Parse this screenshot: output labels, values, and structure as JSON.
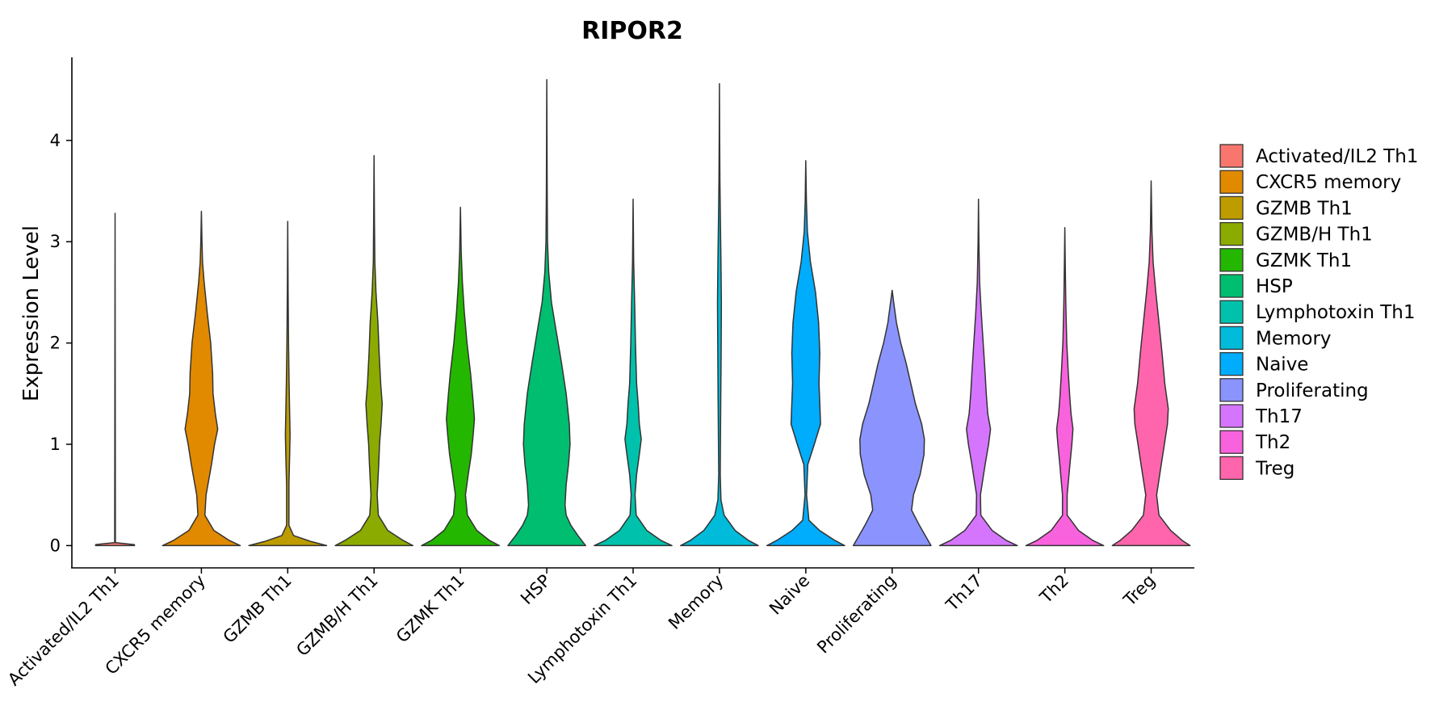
{
  "chart_data": {
    "type": "violin",
    "title": "RIPOR2",
    "xlabel": "",
    "ylabel": "Expression Level",
    "ylim": [
      -0.22,
      4.82
    ],
    "yticks": [
      0,
      1,
      2,
      3,
      4
    ],
    "grid": false,
    "legend_position": "right",
    "categories": [
      "Activated/IL2 Th1",
      "CXCR5 memory",
      "GZMB Th1",
      "GZMB/H Th1",
      "GZMK Th1",
      "HSP",
      "Lymphotoxin Th1",
      "Memory",
      "Naive",
      "Proliferating",
      "Th17",
      "Th2",
      "Treg"
    ],
    "series": [
      {
        "name": "Activated/IL2 Th1",
        "color": "#F8766D",
        "max": 3.28,
        "profile": [
          [
            0,
            0.5
          ],
          [
            0.01,
            0.5
          ],
          [
            0.03,
            0.01
          ],
          [
            3.28,
            0
          ]
        ]
      },
      {
        "name": "CXCR5 memory",
        "color": "#E18A00",
        "max": 3.3,
        "profile": [
          [
            0,
            1.0
          ],
          [
            0.05,
            0.72
          ],
          [
            0.15,
            0.32
          ],
          [
            0.3,
            0.09
          ],
          [
            0.5,
            0.12
          ],
          [
            0.8,
            0.26
          ],
          [
            1.0,
            0.34
          ],
          [
            1.15,
            0.42
          ],
          [
            1.3,
            0.36
          ],
          [
            1.5,
            0.3
          ],
          [
            1.7,
            0.29
          ],
          [
            2.0,
            0.24
          ],
          [
            2.3,
            0.15
          ],
          [
            2.6,
            0.07
          ],
          [
            2.8,
            0.03
          ],
          [
            3.0,
            0.015
          ],
          [
            3.3,
            0
          ]
        ]
      },
      {
        "name": "GZMB Th1",
        "color": "#BE9C00",
        "max": 3.2,
        "profile": [
          [
            0,
            1.0
          ],
          [
            0.04,
            0.6
          ],
          [
            0.1,
            0.15
          ],
          [
            0.2,
            0.03
          ],
          [
            0.6,
            0.03
          ],
          [
            0.9,
            0.05
          ],
          [
            1.1,
            0.06
          ],
          [
            1.3,
            0.05
          ],
          [
            1.6,
            0.035
          ],
          [
            2.0,
            0.02
          ],
          [
            2.5,
            0.01
          ],
          [
            3.2,
            0
          ]
        ]
      },
      {
        "name": "GZMB/H Th1",
        "color": "#8CAB00",
        "max": 3.85,
        "profile": [
          [
            0,
            1.0
          ],
          [
            0.05,
            0.75
          ],
          [
            0.15,
            0.35
          ],
          [
            0.3,
            0.11
          ],
          [
            0.5,
            0.08
          ],
          [
            0.8,
            0.12
          ],
          [
            1.0,
            0.14
          ],
          [
            1.2,
            0.18
          ],
          [
            1.4,
            0.21
          ],
          [
            1.6,
            0.17
          ],
          [
            1.9,
            0.13
          ],
          [
            2.2,
            0.1
          ],
          [
            2.5,
            0.05
          ],
          [
            2.8,
            0.02
          ],
          [
            3.2,
            0.01
          ],
          [
            3.85,
            0
          ]
        ]
      },
      {
        "name": "GZMK Th1",
        "color": "#24B700",
        "max": 3.34,
        "profile": [
          [
            0,
            1.0
          ],
          [
            0.05,
            0.75
          ],
          [
            0.15,
            0.42
          ],
          [
            0.3,
            0.18
          ],
          [
            0.5,
            0.13
          ],
          [
            0.7,
            0.2
          ],
          [
            0.9,
            0.28
          ],
          [
            1.1,
            0.33
          ],
          [
            1.25,
            0.36
          ],
          [
            1.45,
            0.32
          ],
          [
            1.7,
            0.26
          ],
          [
            2.0,
            0.17
          ],
          [
            2.3,
            0.1
          ],
          [
            2.6,
            0.05
          ],
          [
            2.9,
            0.02
          ],
          [
            3.34,
            0
          ]
        ]
      },
      {
        "name": "HSP",
        "color": "#00BE70",
        "max": 4.6,
        "profile": [
          [
            0,
            1.0
          ],
          [
            0.1,
            0.8
          ],
          [
            0.2,
            0.62
          ],
          [
            0.3,
            0.5
          ],
          [
            0.4,
            0.47
          ],
          [
            0.6,
            0.5
          ],
          [
            0.8,
            0.56
          ],
          [
            1.0,
            0.6
          ],
          [
            1.2,
            0.58
          ],
          [
            1.5,
            0.5
          ],
          [
            1.8,
            0.38
          ],
          [
            2.1,
            0.25
          ],
          [
            2.4,
            0.12
          ],
          [
            2.7,
            0.05
          ],
          [
            3.0,
            0.02
          ],
          [
            3.5,
            0.01
          ],
          [
            4.6,
            0
          ]
        ]
      },
      {
        "name": "Lymphotoxin Th1",
        "color": "#00C1AB",
        "max": 3.42,
        "profile": [
          [
            0,
            1.0
          ],
          [
            0.05,
            0.72
          ],
          [
            0.15,
            0.35
          ],
          [
            0.3,
            0.08
          ],
          [
            0.5,
            0.05
          ],
          [
            0.7,
            0.09
          ],
          [
            0.9,
            0.16
          ],
          [
            1.05,
            0.21
          ],
          [
            1.2,
            0.16
          ],
          [
            1.4,
            0.13
          ],
          [
            1.6,
            0.09
          ],
          [
            2.0,
            0.06
          ],
          [
            2.4,
            0.04
          ],
          [
            2.8,
            0.015
          ],
          [
            3.42,
            0
          ]
        ]
      },
      {
        "name": "Memory",
        "color": "#00BBDA",
        "max": 4.56,
        "profile": [
          [
            0,
            1.0
          ],
          [
            0.05,
            0.75
          ],
          [
            0.15,
            0.4
          ],
          [
            0.3,
            0.12
          ],
          [
            0.45,
            0.04
          ],
          [
            0.7,
            0.02
          ],
          [
            1.0,
            0.025
          ],
          [
            1.5,
            0.035
          ],
          [
            2.0,
            0.045
          ],
          [
            2.4,
            0.05
          ],
          [
            2.8,
            0.04
          ],
          [
            3.2,
            0.025
          ],
          [
            3.6,
            0.012
          ],
          [
            4.0,
            0.006
          ],
          [
            4.56,
            0
          ]
        ]
      },
      {
        "name": "Naive",
        "color": "#00ACFC",
        "max": 3.8,
        "profile": [
          [
            0,
            1.0
          ],
          [
            0.05,
            0.75
          ],
          [
            0.15,
            0.35
          ],
          [
            0.25,
            0.08
          ],
          [
            0.5,
            0.02
          ],
          [
            0.8,
            0.05
          ],
          [
            1.0,
            0.22
          ],
          [
            1.2,
            0.38
          ],
          [
            1.4,
            0.36
          ],
          [
            1.6,
            0.34
          ],
          [
            1.9,
            0.36
          ],
          [
            2.2,
            0.33
          ],
          [
            2.5,
            0.25
          ],
          [
            2.8,
            0.12
          ],
          [
            3.1,
            0.04
          ],
          [
            3.4,
            0.015
          ],
          [
            3.8,
            0
          ]
        ]
      },
      {
        "name": "Proliferating",
        "color": "#8B93FF",
        "max": 2.52,
        "profile": [
          [
            0,
            1.0
          ],
          [
            0.1,
            0.85
          ],
          [
            0.2,
            0.7
          ],
          [
            0.35,
            0.5
          ],
          [
            0.5,
            0.55
          ],
          [
            0.7,
            0.72
          ],
          [
            0.9,
            0.82
          ],
          [
            1.05,
            0.83
          ],
          [
            1.2,
            0.76
          ],
          [
            1.4,
            0.6
          ],
          [
            1.6,
            0.48
          ],
          [
            1.8,
            0.36
          ],
          [
            2.0,
            0.22
          ],
          [
            2.2,
            0.11
          ],
          [
            2.4,
            0.04
          ],
          [
            2.52,
            0
          ]
        ]
      },
      {
        "name": "Th17",
        "color": "#D575FE",
        "max": 3.42,
        "profile": [
          [
            0,
            1.0
          ],
          [
            0.05,
            0.72
          ],
          [
            0.15,
            0.35
          ],
          [
            0.3,
            0.06
          ],
          [
            0.5,
            0.05
          ],
          [
            0.8,
            0.17
          ],
          [
            1.0,
            0.26
          ],
          [
            1.15,
            0.31
          ],
          [
            1.3,
            0.24
          ],
          [
            1.5,
            0.2
          ],
          [
            1.7,
            0.17
          ],
          [
            2.0,
            0.12
          ],
          [
            2.3,
            0.07
          ],
          [
            2.6,
            0.03
          ],
          [
            3.0,
            0.01
          ],
          [
            3.42,
            0
          ]
        ]
      },
      {
        "name": "Th2",
        "color": "#F962DD",
        "max": 3.14,
        "profile": [
          [
            0,
            1.0
          ],
          [
            0.05,
            0.72
          ],
          [
            0.15,
            0.35
          ],
          [
            0.3,
            0.06
          ],
          [
            0.5,
            0.06
          ],
          [
            0.8,
            0.13
          ],
          [
            1.0,
            0.18
          ],
          [
            1.15,
            0.21
          ],
          [
            1.3,
            0.16
          ],
          [
            1.45,
            0.13
          ],
          [
            1.7,
            0.09
          ],
          [
            2.0,
            0.05
          ],
          [
            2.4,
            0.025
          ],
          [
            2.8,
            0.01
          ],
          [
            3.14,
            0
          ]
        ]
      },
      {
        "name": "Treg",
        "color": "#FF65AC",
        "max": 3.6,
        "profile": [
          [
            0,
            1.0
          ],
          [
            0.05,
            0.8
          ],
          [
            0.15,
            0.5
          ],
          [
            0.3,
            0.2
          ],
          [
            0.5,
            0.14
          ],
          [
            0.8,
            0.26
          ],
          [
            1.0,
            0.34
          ],
          [
            1.2,
            0.42
          ],
          [
            1.35,
            0.44
          ],
          [
            1.6,
            0.35
          ],
          [
            1.9,
            0.28
          ],
          [
            2.2,
            0.2
          ],
          [
            2.5,
            0.12
          ],
          [
            2.8,
            0.05
          ],
          [
            3.1,
            0.02
          ],
          [
            3.6,
            0
          ]
        ]
      }
    ]
  }
}
